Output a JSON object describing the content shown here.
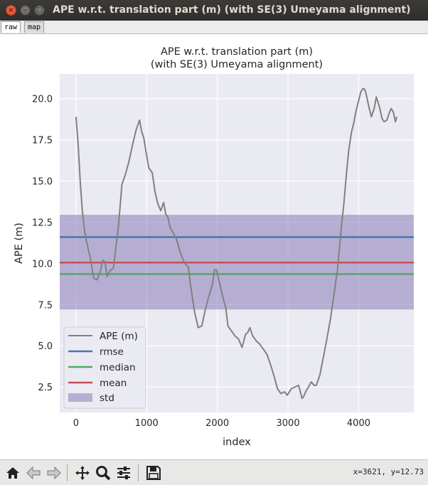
{
  "window": {
    "title": "APE w.r.t. translation part (m) (with SE(3) Umeyama alignment)",
    "close_glyph": "×",
    "min_glyph": "–",
    "max_glyph": "□"
  },
  "tabs": [
    {
      "label": "raw",
      "active": true
    },
    {
      "label": "map",
      "active": false
    }
  ],
  "toolbar": {
    "buttons": [
      {
        "name": "home-button",
        "icon": "home-icon"
      },
      {
        "name": "back-button",
        "icon": "arrow-left-icon"
      },
      {
        "name": "forward-button",
        "icon": "arrow-right-icon"
      },
      {
        "name": "pan-button",
        "icon": "move-arrows-icon"
      },
      {
        "name": "zoom-button",
        "icon": "magnifier-icon"
      },
      {
        "name": "configure-subplots-button",
        "icon": "sliders-icon"
      },
      {
        "name": "save-button",
        "icon": "floppy-disk-icon"
      }
    ],
    "coords": "x=3621, y=12.73"
  },
  "colors": {
    "plot_bg": "#eaeaf2",
    "grid": "#ffffff",
    "ape": "#808080",
    "rmse": "#4c72b0",
    "median": "#55a868",
    "mean": "#c44e52",
    "std": "#8172b2"
  },
  "chart_data": {
    "type": "line",
    "title": "APE w.r.t. translation part (m)",
    "subtitle": "(with SE(3) Umeyama alignment)",
    "xlabel": "index",
    "ylabel": "APE (m)",
    "xlim": [
      -230,
      4780
    ],
    "ylim": [
      0.95,
      21.5
    ],
    "xticks": [
      0,
      1000,
      2000,
      3000,
      4000
    ],
    "xtick_labels": [
      "0",
      "1000",
      "2000",
      "3000",
      "4000"
    ],
    "yticks": [
      2.5,
      5.0,
      7.5,
      10.0,
      12.5,
      15.0,
      17.5,
      20.0
    ],
    "ytick_labels": [
      "2.5",
      "5.0",
      "7.5",
      "10.0",
      "12.5",
      "15.0",
      "17.5",
      "20.0"
    ],
    "grid": true,
    "legend_position": "lower-left",
    "series": [
      {
        "name": "APE (m)",
        "kind": "line",
        "x": [
          0,
          30,
          60,
          90,
          120,
          150,
          200,
          250,
          300,
          350,
          380,
          410,
          440,
          460,
          490,
          530,
          560,
          600,
          650,
          700,
          750,
          800,
          850,
          900,
          930,
          960,
          990,
          1030,
          1080,
          1120,
          1160,
          1200,
          1240,
          1270,
          1300,
          1330,
          1370,
          1420,
          1480,
          1540,
          1590,
          1620,
          1680,
          1730,
          1780,
          1830,
          1880,
          1930,
          1960,
          1990,
          2020,
          2060,
          2100,
          2120,
          2150,
          2200,
          2250,
          2300,
          2350,
          2400,
          2430,
          2460,
          2500,
          2550,
          2600,
          2650,
          2700,
          2750,
          2800,
          2850,
          2900,
          2950,
          2990,
          3050,
          3100,
          3150,
          3180,
          3200,
          3220,
          3250,
          3290,
          3330,
          3370,
          3400,
          3450,
          3500,
          3550,
          3600,
          3650,
          3700,
          3730,
          3760,
          3790,
          3830,
          3860,
          3900,
          3930,
          3960,
          4000,
          4030,
          4060,
          4080,
          4100,
          4150,
          4180,
          4220,
          4250,
          4280,
          4300,
          4330,
          4360,
          4400,
          4430,
          4460,
          4490,
          4520,
          4540
        ],
        "y": [
          18.9,
          17.3,
          15.0,
          13.2,
          12.0,
          11.3,
          10.4,
          9.1,
          9.0,
          9.6,
          10.2,
          10.1,
          9.2,
          9.4,
          9.6,
          9.7,
          10.8,
          12.2,
          14.8,
          15.4,
          16.2,
          17.2,
          18.1,
          18.7,
          18.0,
          17.6,
          16.8,
          15.8,
          15.5,
          14.3,
          13.6,
          13.2,
          13.7,
          13.0,
          12.8,
          12.2,
          11.9,
          11.5,
          10.6,
          10.0,
          9.8,
          8.7,
          7.0,
          6.1,
          6.2,
          7.2,
          8.0,
          8.7,
          9.6,
          9.6,
          9.0,
          8.3,
          7.6,
          7.3,
          6.2,
          5.9,
          5.6,
          5.4,
          4.9,
          5.7,
          5.8,
          6.1,
          5.6,
          5.3,
          5.1,
          4.8,
          4.5,
          3.9,
          3.2,
          2.4,
          2.1,
          2.2,
          2.0,
          2.4,
          2.5,
          2.6,
          2.1,
          1.8,
          1.9,
          2.2,
          2.5,
          2.8,
          2.6,
          2.6,
          3.2,
          4.3,
          5.4,
          6.6,
          8.1,
          9.6,
          11.0,
          12.4,
          13.6,
          15.6,
          16.9,
          18.0,
          18.5,
          19.2,
          19.9,
          20.4,
          20.6,
          20.6,
          20.4,
          19.4,
          18.9,
          19.4,
          20.1,
          19.7,
          19.4,
          18.8,
          18.6,
          18.7,
          19.1,
          19.4,
          19.2,
          18.6,
          18.9
        ]
      },
      {
        "name": "rmse",
        "kind": "hline",
        "value": 11.6
      },
      {
        "name": "median",
        "kind": "hline",
        "value": 9.35
      },
      {
        "name": "mean",
        "kind": "hline",
        "value": 10.05
      },
      {
        "name": "std",
        "kind": "band",
        "lower": 7.2,
        "upper": 12.95
      }
    ]
  }
}
